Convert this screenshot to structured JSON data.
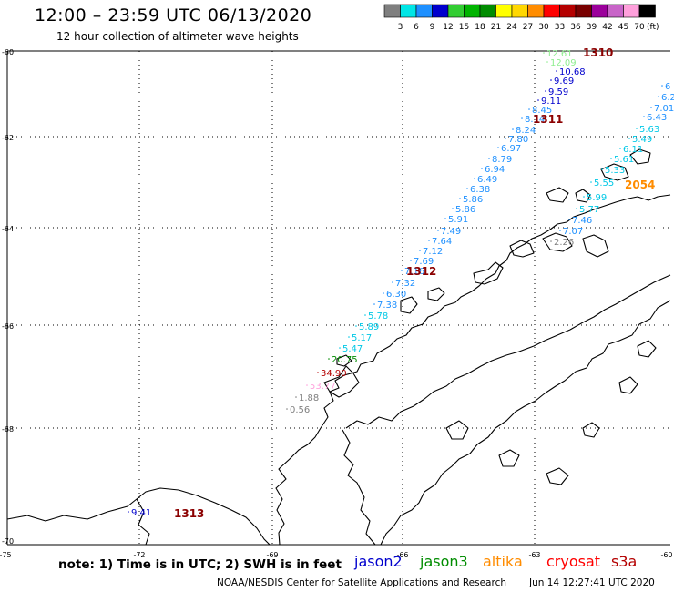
{
  "title": "12:00 – 23:59 UTC 06/13/2020",
  "subtitle": "12 hour collection of altimeter wave heights",
  "colorbar": {
    "labels": [
      "3",
      "6",
      "9",
      "12",
      "15",
      "18",
      "21",
      "24",
      "27",
      "30",
      "33",
      "36",
      "39",
      "42",
      "45",
      "70"
    ],
    "unit": "(ft)",
    "colors": [
      "#7f7f7f",
      "#00e6e6",
      "#1e90ff",
      "#0000cd",
      "#32cd32",
      "#00b400",
      "#008c00",
      "#ffff00",
      "#ffd700",
      "#ff8c00",
      "#ff0000",
      "#b40000",
      "#780000",
      "#9b009b",
      "#c864c8",
      "#ffa0dc",
      "#000000"
    ]
  },
  "axes": {
    "lon_labels": [
      "-75",
      "-72",
      "-69",
      "-66",
      "-63",
      "-60"
    ],
    "lat_labels": [
      "-60",
      "-62",
      "-64",
      "-66",
      "-68",
      "-70"
    ]
  },
  "track_labels": [
    {
      "text": "1310",
      "color": "#8b0000"
    },
    {
      "text": "1311",
      "color": "#8b0000"
    },
    {
      "text": "1312",
      "color": "#8b0000"
    },
    {
      "text": "1313",
      "color": "#8b0000"
    },
    {
      "text": "2054",
      "color": "#ff8c00"
    }
  ],
  "measurements": [
    {
      "value": "12.61",
      "color": "#90ee90"
    },
    {
      "value": "12.09",
      "color": "#90ee90"
    },
    {
      "value": "10.68",
      "color": "#0000cd"
    },
    {
      "value": "9.69",
      "color": "#0000cd"
    },
    {
      "value": "9.59",
      "color": "#0000cd"
    },
    {
      "value": "9.11",
      "color": "#0000cd"
    },
    {
      "value": "8.45",
      "color": "#1e90ff"
    },
    {
      "value": "8.14",
      "color": "#1e90ff"
    },
    {
      "value": "8.24",
      "color": "#1e90ff"
    },
    {
      "value": "7.80",
      "color": "#1e90ff"
    },
    {
      "value": "6.97",
      "color": "#1e90ff"
    },
    {
      "value": "8.79",
      "color": "#1e90ff"
    },
    {
      "value": "6.94",
      "color": "#1e90ff"
    },
    {
      "value": "6.49",
      "color": "#1e90ff"
    },
    {
      "value": "6.38",
      "color": "#1e90ff"
    },
    {
      "value": "5.86",
      "color": "#1e90ff"
    },
    {
      "value": "5.86",
      "color": "#1e90ff"
    },
    {
      "value": "5.91",
      "color": "#1e90ff"
    },
    {
      "value": "7.49",
      "color": "#1e90ff"
    },
    {
      "value": "7.64",
      "color": "#1e90ff"
    },
    {
      "value": "7.12",
      "color": "#1e90ff"
    },
    {
      "value": "7.69",
      "color": "#1e90ff"
    },
    {
      "value": "7.16",
      "color": "#1e90ff"
    },
    {
      "value": "7.32",
      "color": "#1e90ff"
    },
    {
      "value": "6.30",
      "color": "#1e90ff"
    },
    {
      "value": "7.38",
      "color": "#1e90ff"
    },
    {
      "value": "5.78",
      "color": "#00c8e6"
    },
    {
      "value": "5.89",
      "color": "#00c8e6"
    },
    {
      "value": "5.17",
      "color": "#00c8e6"
    },
    {
      "value": "5.47",
      "color": "#00c8e6"
    },
    {
      "value": "20.75",
      "color": "#008c00"
    },
    {
      "value": "34.90",
      "color": "#b40000"
    },
    {
      "value": "53.77",
      "color": "#ffa0dc"
    },
    {
      "value": "1.88",
      "color": "#7f7f7f"
    },
    {
      "value": "0.56",
      "color": "#7f7f7f"
    },
    {
      "value": "7.01",
      "color": "#1e90ff"
    },
    {
      "value": "6.43",
      "color": "#1e90ff"
    },
    {
      "value": "5.63",
      "color": "#00c8e6"
    },
    {
      "value": "5.49",
      "color": "#00c8e6"
    },
    {
      "value": "6.11",
      "color": "#00c8e6"
    },
    {
      "value": "5.61",
      "color": "#00c8e6"
    },
    {
      "value": "5.33",
      "color": "#00c8e6"
    },
    {
      "value": "5.55",
      "color": "#00c8e6"
    },
    {
      "value": "5.99",
      "color": "#00c8e6"
    },
    {
      "value": "5.77",
      "color": "#00c8e6"
    },
    {
      "value": "7.46",
      "color": "#1e90ff"
    },
    {
      "value": "7.07",
      "color": "#1e90ff"
    },
    {
      "value": "2.26",
      "color": "#7f7f7f"
    },
    {
      "value": "9.41",
      "color": "#0000cd"
    },
    {
      "value": "6.2",
      "color": "#1e90ff"
    },
    {
      "value": "6",
      "color": "#1e90ff"
    }
  ],
  "footer": {
    "note": "note:  1) Time is in UTC;  2) SWH is in feet",
    "satellites": [
      {
        "name": "jason2",
        "color": "#0000cd"
      },
      {
        "name": "jason3",
        "color": "#008c00"
      },
      {
        "name": "altika",
        "color": "#ff8c00"
      },
      {
        "name": "cryosat",
        "color": "#ff0000"
      },
      {
        "name": "s3a",
        "color": "#b40000"
      }
    ],
    "credit": "NOAA/NESDIS Center for Satellite Applications and Research",
    "timestamp": "Jun 14 12:27:41 UTC 2020"
  }
}
